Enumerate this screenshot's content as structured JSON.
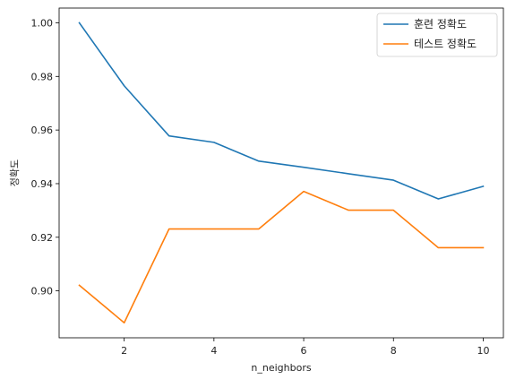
{
  "chart_data": {
    "type": "line",
    "title": "",
    "xlabel": "n_neighbors",
    "ylabel": "정확도",
    "x": [
      1,
      2,
      3,
      4,
      5,
      6,
      7,
      8,
      9,
      10
    ],
    "series": [
      {
        "name": "훈련 정확도",
        "color": "#1f77b4",
        "values": [
          1.0,
          0.9765,
          0.9578,
          0.9554,
          0.9484,
          0.9461,
          0.9437,
          0.9413,
          0.9343,
          0.939
        ]
      },
      {
        "name": "테스트 정확도",
        "color": "#ff7f0e",
        "values": [
          0.9021,
          0.8881,
          0.9231,
          0.9231,
          0.9231,
          0.9371,
          0.9301,
          0.9301,
          0.9161,
          0.9161
        ]
      }
    ],
    "xlim": [
      0.55,
      10.45
    ],
    "ylim": [
      0.8825,
      1.0055
    ],
    "xticks": [
      2,
      4,
      6,
      8,
      10
    ],
    "yticks": [
      0.9,
      0.92,
      0.94,
      0.96,
      0.98,
      1.0
    ],
    "ytick_labels": [
      "0.90",
      "0.92",
      "0.94",
      "0.96",
      "0.98",
      "1.00"
    ],
    "grid": false,
    "legend_position": "top-right"
  }
}
